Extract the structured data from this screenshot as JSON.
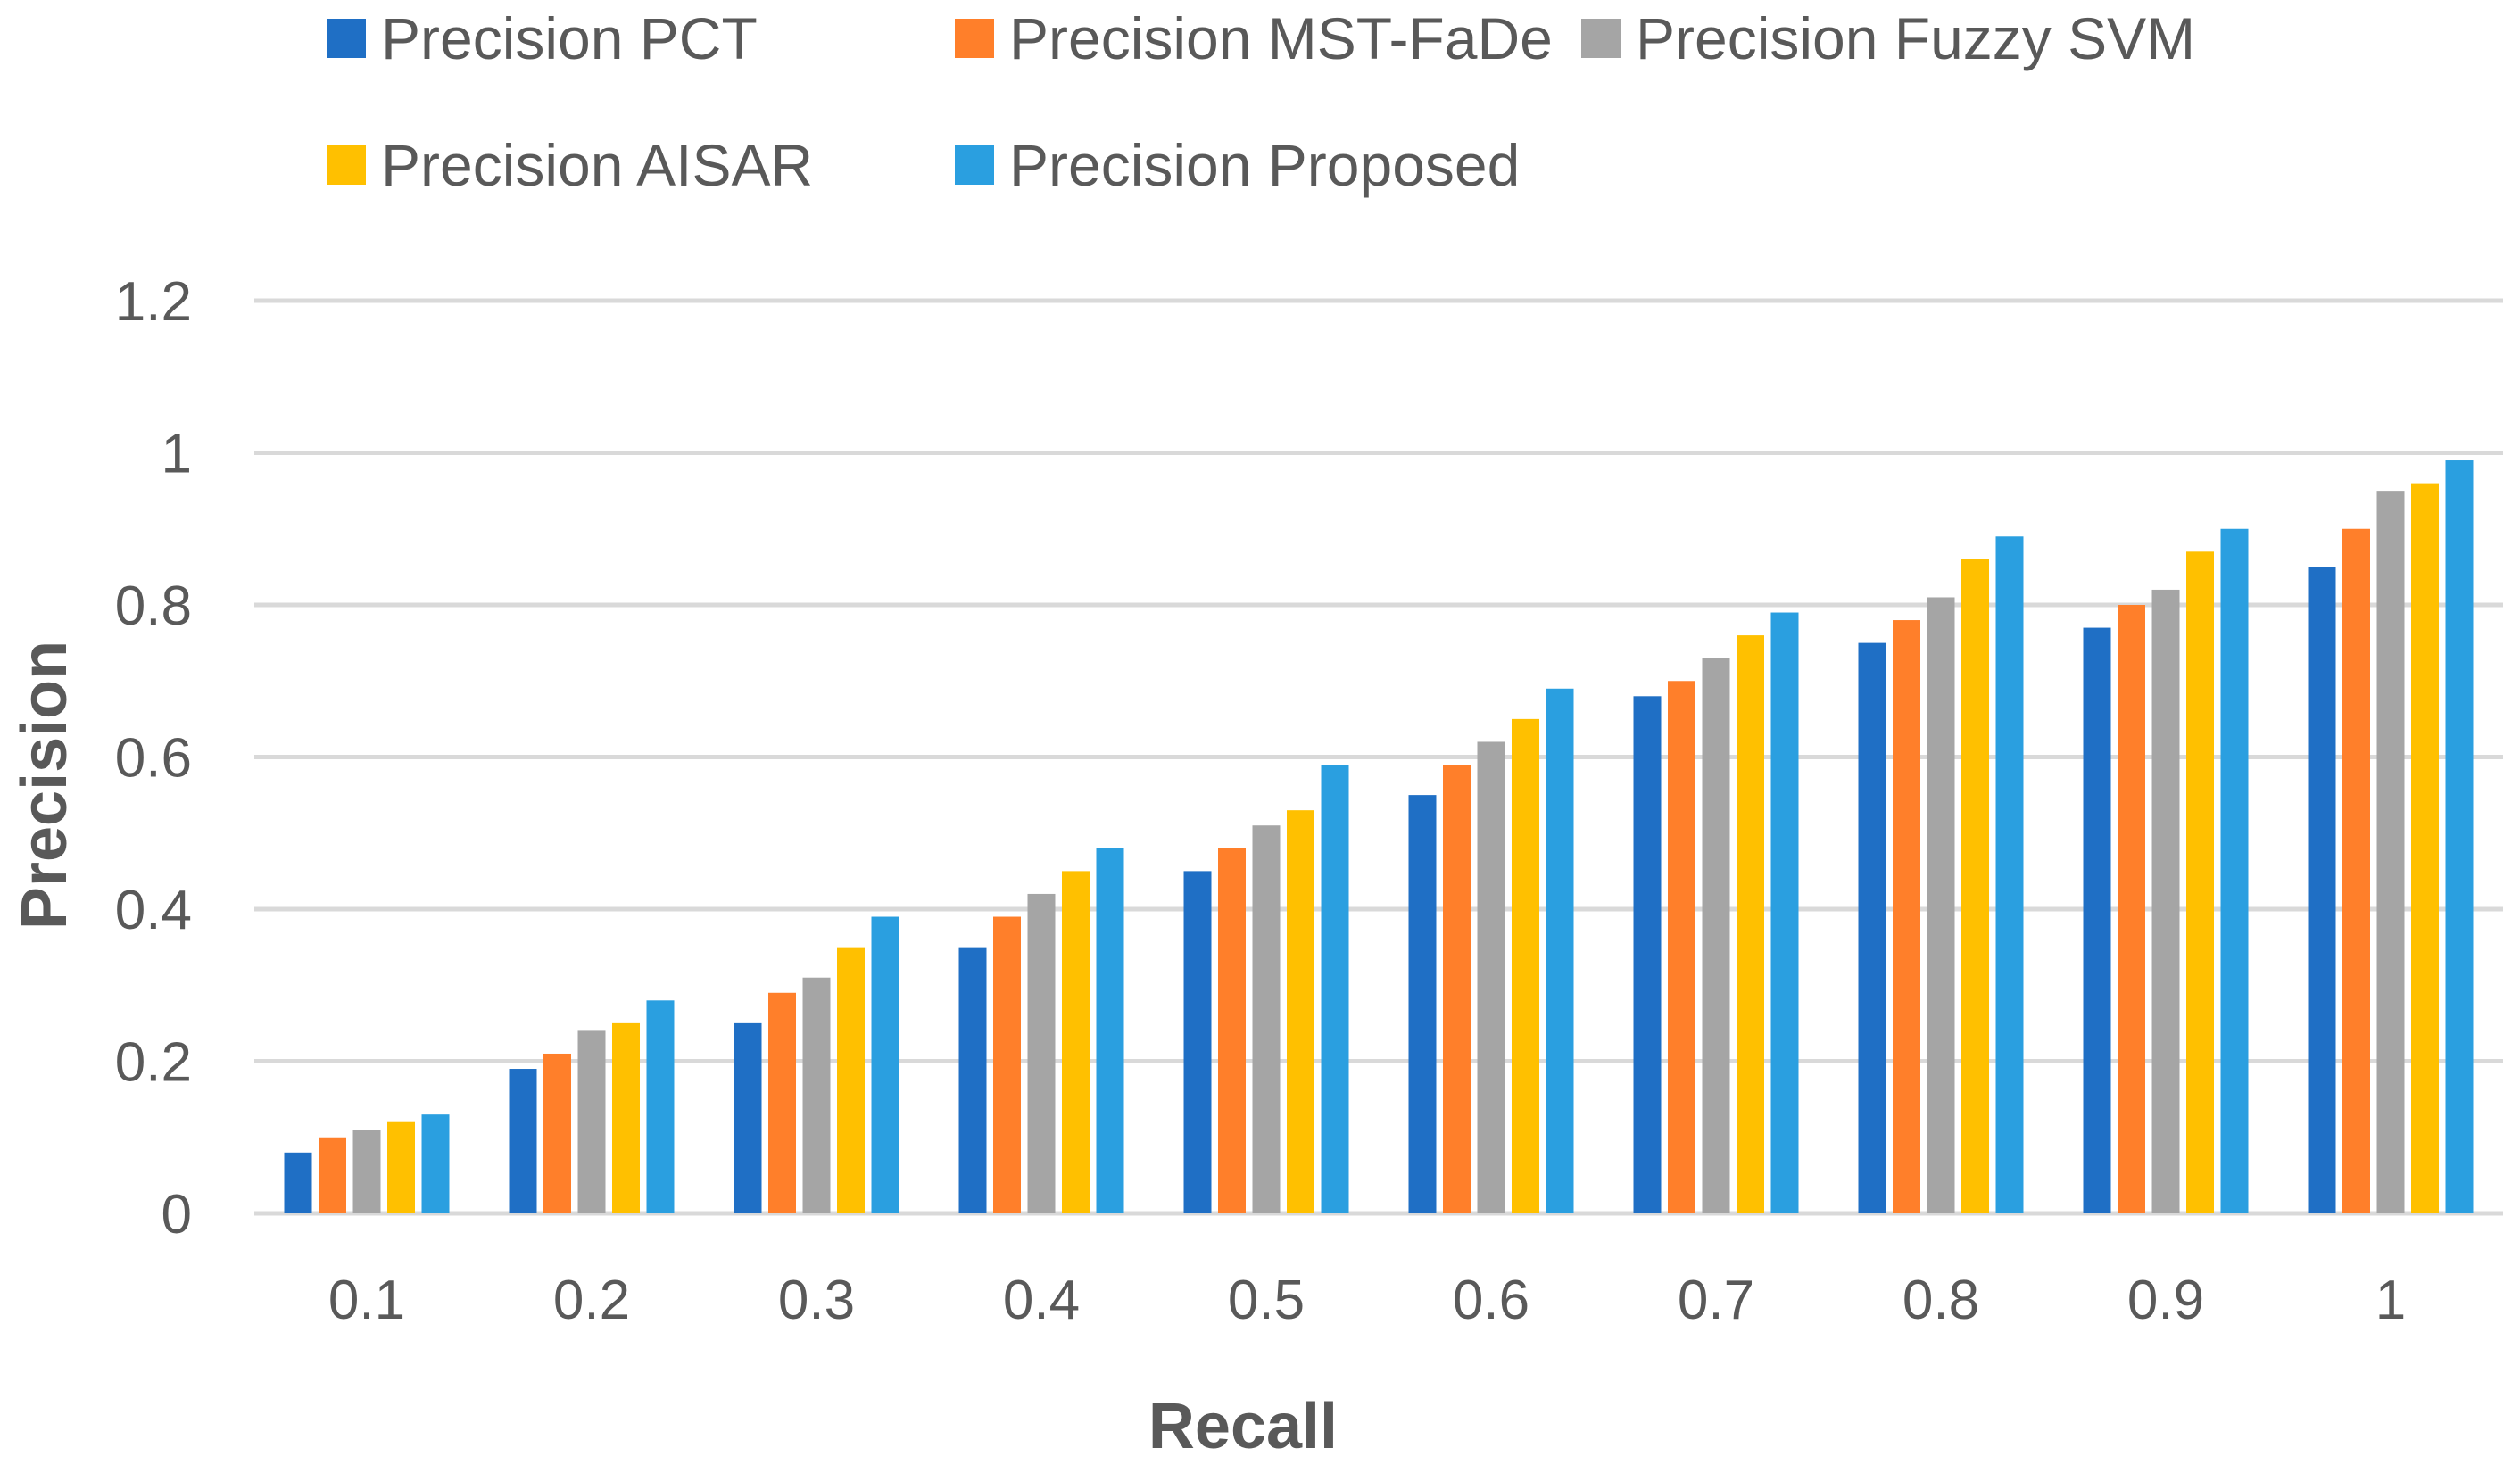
{
  "chart_data": {
    "type": "bar",
    "title": "",
    "xlabel": "Recall",
    "ylabel": "Precision",
    "ylim": [
      0,
      1.2
    ],
    "yticks": [
      "0",
      "0.2",
      "0.4",
      "0.6",
      "0.8",
      "1",
      "1.2"
    ],
    "categories": [
      "0.1",
      "0.2",
      "0.3",
      "0.4",
      "0.5",
      "0.6",
      "0.7",
      "0.8",
      "0.9",
      "1"
    ],
    "legend_position": "top",
    "grid": true,
    "series": [
      {
        "name": "Precision PCT",
        "color": "#1F6FC5",
        "values": [
          0.08,
          0.19,
          0.25,
          0.35,
          0.45,
          0.55,
          0.68,
          0.75,
          0.77,
          0.85
        ]
      },
      {
        "name": "Precision MST-FaDe",
        "color": "#FF7F2A",
        "values": [
          0.1,
          0.21,
          0.29,
          0.39,
          0.48,
          0.59,
          0.7,
          0.78,
          0.8,
          0.9
        ]
      },
      {
        "name": "Precision Fuzzy SVM",
        "color": "#A5A5A5",
        "values": [
          0.11,
          0.24,
          0.31,
          0.42,
          0.51,
          0.62,
          0.73,
          0.81,
          0.82,
          0.95
        ]
      },
      {
        "name": "Precision AISAR",
        "color": "#FFC000",
        "values": [
          0.12,
          0.25,
          0.35,
          0.45,
          0.53,
          0.65,
          0.76,
          0.86,
          0.87,
          0.96
        ]
      },
      {
        "name": "Precision Proposed",
        "color": "#2A9FE0",
        "values": [
          0.13,
          0.28,
          0.39,
          0.48,
          0.59,
          0.69,
          0.79,
          0.89,
          0.9,
          0.99
        ]
      }
    ],
    "colors": {
      "gridline": "#D9D9D9",
      "text": "#595959"
    }
  }
}
